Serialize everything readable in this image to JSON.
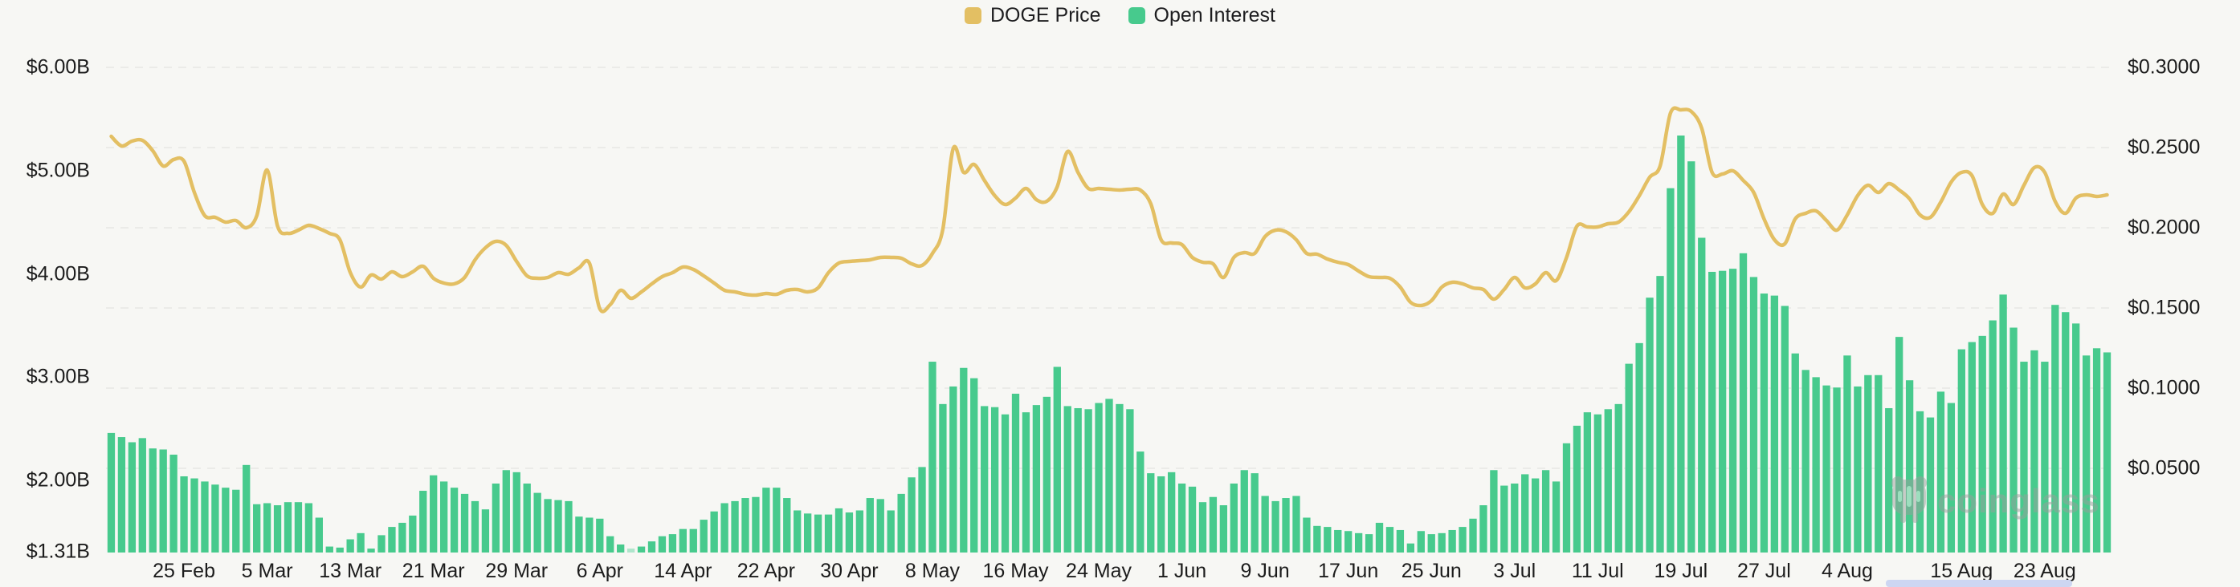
{
  "legend": {
    "items": [
      {
        "label": "DOGE Price",
        "color": "#e3bf63"
      },
      {
        "label": "Open Interest",
        "color": "#47ca8d"
      }
    ]
  },
  "watermark": {
    "text": "coinglass"
  },
  "colors": {
    "background": "#f7f7f4",
    "gridline": "#e7e7e4",
    "axis_text": "#1c1c1c",
    "price_line": "#e3bf63",
    "oi_bar": "#47ca8d",
    "oi_bar_light": "#aee5cb",
    "scroll_thumb": "#cdd6f2",
    "watermark_gray": "#99a09c"
  },
  "chart_data": {
    "type": "mixed",
    "num_points": 193,
    "x_start": "18 Feb",
    "x_end": "29 Aug",
    "grid": "horizontal-dashed",
    "legend_position": "top-center",
    "x_ticks": [
      {
        "label": "25 Feb",
        "i": 7
      },
      {
        "label": "5 Mar",
        "i": 15
      },
      {
        "label": "13 Mar",
        "i": 23
      },
      {
        "label": "21 Mar",
        "i": 31
      },
      {
        "label": "29 Mar",
        "i": 39
      },
      {
        "label": "6 Apr",
        "i": 47
      },
      {
        "label": "14 Apr",
        "i": 55
      },
      {
        "label": "22 Apr",
        "i": 63
      },
      {
        "label": "30 Apr",
        "i": 71
      },
      {
        "label": "8 May",
        "i": 79
      },
      {
        "label": "16 May",
        "i": 87
      },
      {
        "label": "24 May",
        "i": 95
      },
      {
        "label": "1 Jun",
        "i": 103
      },
      {
        "label": "9 Jun",
        "i": 111
      },
      {
        "label": "17 Jun",
        "i": 119
      },
      {
        "label": "25 Jun",
        "i": 127
      },
      {
        "label": "3 Jul",
        "i": 135
      },
      {
        "label": "11 Jul",
        "i": 143
      },
      {
        "label": "19 Jul",
        "i": 151
      },
      {
        "label": "27 Jul",
        "i": 159
      },
      {
        "label": "4 Aug",
        "i": 167
      },
      {
        "label": "15 Aug",
        "i": 178
      },
      {
        "label": "23 Aug",
        "i": 186
      }
    ],
    "left_axis": {
      "series": "Open Interest",
      "unit": "USD billions",
      "labels": [
        "$6.00B",
        "$5.00B",
        "$4.00B",
        "$3.00B",
        "$2.00B",
        "$1.31B"
      ],
      "values": [
        6.0,
        5.0,
        4.0,
        3.0,
        2.0,
        1.31
      ],
      "min": 1.31,
      "max": 6.0
    },
    "right_axis": {
      "series": "DOGE Price",
      "unit": "USD",
      "labels": [
        "$0.3000",
        "$0.2500",
        "$0.2000",
        "$0.1500",
        "$0.1000",
        "$0.0500"
      ],
      "values": [
        0.3,
        0.25,
        0.2,
        0.15,
        0.1,
        0.05
      ],
      "min": 0.0,
      "max": 0.3
    },
    "series": [
      {
        "name": "DOGE Price",
        "type": "line",
        "axis": "right",
        "color": "#e3bf63",
        "stroke_width": 4.5,
        "values": [
          0.257,
          0.251,
          0.254,
          0.2545,
          0.248,
          0.2385,
          0.2425,
          0.2415,
          0.222,
          0.2075,
          0.2065,
          0.2035,
          0.2045,
          0.2,
          0.2075,
          0.236,
          0.201,
          0.1965,
          0.1985,
          0.2015,
          0.1995,
          0.1965,
          0.1925,
          0.172,
          0.163,
          0.1705,
          0.168,
          0.1725,
          0.1695,
          0.1725,
          0.176,
          0.1685,
          0.1655,
          0.165,
          0.169,
          0.18,
          0.1875,
          0.1915,
          0.189,
          0.179,
          0.17,
          0.1685,
          0.169,
          0.172,
          0.171,
          0.175,
          0.178,
          0.1495,
          0.152,
          0.161,
          0.156,
          0.16,
          0.165,
          0.1695,
          0.172,
          0.1755,
          0.174,
          0.17,
          0.1655,
          0.161,
          0.16,
          0.1585,
          0.158,
          0.159,
          0.1585,
          0.161,
          0.1615,
          0.16,
          0.1625,
          0.172,
          0.178,
          0.179,
          0.1795,
          0.18,
          0.1815,
          0.1815,
          0.181,
          0.1775,
          0.1765,
          0.184,
          0.199,
          0.2495,
          0.2345,
          0.2395,
          0.2295,
          0.22,
          0.2145,
          0.2185,
          0.2245,
          0.2175,
          0.2165,
          0.2255,
          0.2475,
          0.2345,
          0.2245,
          0.2245,
          0.224,
          0.2235,
          0.224,
          0.2235,
          0.215,
          0.1925,
          0.1905,
          0.1895,
          0.1815,
          0.1785,
          0.1775,
          0.169,
          0.1815,
          0.1845,
          0.184,
          0.1945,
          0.1985,
          0.1975,
          0.1925,
          0.184,
          0.1835,
          0.1805,
          0.1785,
          0.177,
          0.173,
          0.1695,
          0.169,
          0.1685,
          0.163,
          0.1535,
          0.1515,
          0.1545,
          0.163,
          0.166,
          0.165,
          0.1625,
          0.1615,
          0.1555,
          0.1615,
          0.169,
          0.1625,
          0.165,
          0.172,
          0.167,
          0.1815,
          0.201,
          0.2005,
          0.2005,
          0.2025,
          0.2035,
          0.21,
          0.22,
          0.2315,
          0.2385,
          0.2715,
          0.2735,
          0.2725,
          0.262,
          0.2345,
          0.2335,
          0.2355,
          0.2295,
          0.222,
          0.2055,
          0.1925,
          0.19,
          0.2055,
          0.209,
          0.2105,
          0.2045,
          0.1985,
          0.208,
          0.22,
          0.2265,
          0.222,
          0.2275,
          0.2235,
          0.218,
          0.208,
          0.2065,
          0.216,
          0.2285,
          0.2345,
          0.2325,
          0.2145,
          0.209,
          0.221,
          0.2145,
          0.2265,
          0.2375,
          0.2345,
          0.2165,
          0.209,
          0.2185,
          0.2205,
          0.2195,
          0.2205
        ]
      },
      {
        "name": "Open Interest",
        "type": "bar",
        "axis": "left",
        "color": "#47ca8d",
        "light_color": "#aee5cb",
        "light_indices": [
          50
        ],
        "values": [
          2.46,
          2.42,
          2.37,
          2.41,
          2.31,
          2.3,
          2.25,
          2.04,
          2.02,
          1.99,
          1.96,
          1.93,
          1.91,
          2.15,
          1.77,
          1.78,
          1.76,
          1.79,
          1.79,
          1.78,
          1.64,
          1.36,
          1.35,
          1.43,
          1.49,
          1.34,
          1.47,
          1.55,
          1.59,
          1.66,
          1.9,
          2.05,
          1.99,
          1.93,
          1.87,
          1.8,
          1.72,
          1.97,
          2.1,
          2.08,
          1.97,
          1.88,
          1.82,
          1.81,
          1.8,
          1.65,
          1.64,
          1.63,
          1.46,
          1.38,
          1.34,
          1.36,
          1.41,
          1.46,
          1.48,
          1.53,
          1.53,
          1.62,
          1.7,
          1.78,
          1.8,
          1.83,
          1.84,
          1.93,
          1.93,
          1.83,
          1.71,
          1.68,
          1.67,
          1.67,
          1.73,
          1.69,
          1.71,
          1.83,
          1.82,
          1.71,
          1.87,
          2.03,
          2.13,
          3.15,
          2.74,
          2.91,
          3.09,
          2.99,
          2.72,
          2.71,
          2.64,
          2.84,
          2.66,
          2.73,
          2.81,
          3.1,
          2.72,
          2.7,
          2.69,
          2.75,
          2.79,
          2.74,
          2.69,
          2.28,
          2.07,
          2.04,
          2.08,
          1.97,
          1.94,
          1.79,
          1.84,
          1.76,
          1.97,
          2.1,
          2.07,
          1.85,
          1.8,
          1.83,
          1.85,
          1.64,
          1.56,
          1.55,
          1.52,
          1.51,
          1.49,
          1.48,
          1.59,
          1.55,
          1.52,
          1.39,
          1.51,
          1.48,
          1.49,
          1.52,
          1.55,
          1.63,
          1.76,
          2.1,
          1.95,
          1.97,
          2.06,
          2.02,
          2.1,
          1.99,
          2.36,
          2.53,
          2.66,
          2.64,
          2.69,
          2.74,
          3.13,
          3.33,
          3.77,
          3.98,
          4.83,
          5.34,
          5.09,
          4.35,
          4.02,
          4.03,
          4.05,
          4.2,
          3.97,
          3.81,
          3.79,
          3.69,
          3.23,
          3.07,
          3.0,
          2.92,
          2.9,
          3.21,
          2.91,
          3.02,
          3.02,
          2.7,
          3.39,
          2.97,
          2.67,
          2.61,
          2.86,
          2.75,
          3.27,
          3.34,
          3.4,
          3.55,
          3.8,
          3.48,
          3.15,
          3.26,
          3.15,
          3.7,
          3.63,
          3.52,
          3.21,
          3.28,
          3.24
        ]
      }
    ]
  }
}
